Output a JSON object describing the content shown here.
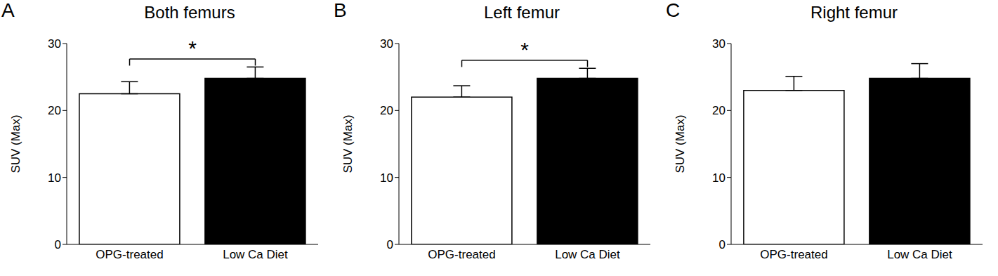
{
  "chart_data": [
    {
      "type": "bar",
      "panel": "A",
      "title": "Both femurs",
      "categories": [
        "OPG-treated",
        "Low Ca Diet"
      ],
      "values": [
        22.5,
        24.8
      ],
      "errors": [
        1.8,
        1.7
      ],
      "colors": [
        "#ffffff",
        "#000000"
      ],
      "ylabel": "SUV (Max)",
      "ylim": [
        0,
        30
      ],
      "yticks": [
        0,
        10,
        20,
        30
      ],
      "annotation": "*"
    },
    {
      "type": "bar",
      "panel": "B",
      "title": "Left femur",
      "categories": [
        "OPG-treated",
        "Low Ca Diet"
      ],
      "values": [
        22.0,
        24.8
      ],
      "errors": [
        1.7,
        1.5
      ],
      "colors": [
        "#ffffff",
        "#000000"
      ],
      "ylabel": "SUV (Max)",
      "ylim": [
        0,
        30
      ],
      "yticks": [
        0,
        10,
        20,
        30
      ],
      "annotation": "*"
    },
    {
      "type": "bar",
      "panel": "C",
      "title": "Right femur",
      "categories": [
        "OPG-treated",
        "Low Ca Diet"
      ],
      "values": [
        23.0,
        24.8
      ],
      "errors": [
        2.1,
        2.2
      ],
      "colors": [
        "#ffffff",
        "#000000"
      ],
      "ylabel": "SUV (Max)",
      "ylim": [
        0,
        30
      ],
      "yticks": [
        0,
        10,
        20,
        30
      ]
    }
  ]
}
